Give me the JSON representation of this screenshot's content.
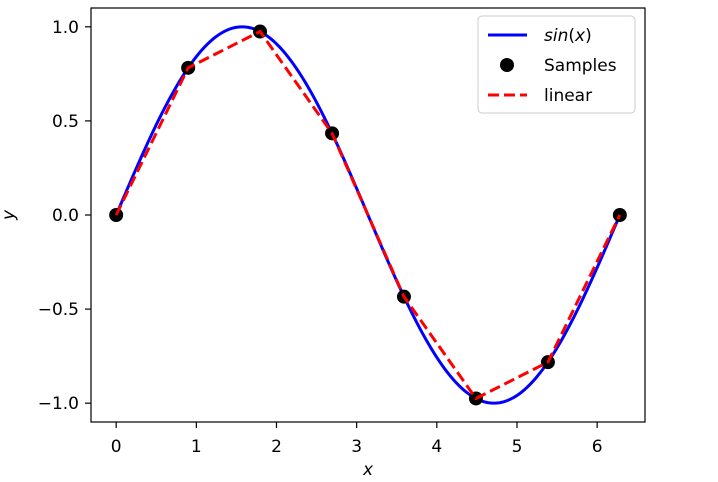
{
  "chart_data": {
    "type": "line",
    "title": "",
    "xlabel": "x",
    "ylabel": "y",
    "xlim": [
      -0.314,
      6.597
    ],
    "ylim": [
      -1.1,
      1.1
    ],
    "x_ticks": [
      0,
      1,
      2,
      3,
      4,
      5,
      6
    ],
    "y_ticks": [
      1.0,
      0.5,
      0.0,
      -0.5,
      -1.0
    ],
    "x_tick_labels": [
      "0",
      "1",
      "2",
      "3",
      "4",
      "5",
      "6"
    ],
    "y_tick_labels": [
      "1.0",
      "0.5",
      "0.0",
      "−0.5",
      "−1.0"
    ],
    "grid": false,
    "legend_position": "top-right",
    "series": [
      {
        "name": "sin(x)",
        "kind": "curve",
        "function": "sin",
        "x_range": [
          0,
          6.283
        ],
        "color": "#0000ff",
        "style": "solid"
      },
      {
        "name": "Samples",
        "kind": "scatter",
        "color": "#000000",
        "x": [
          0.0,
          0.898,
          1.795,
          2.693,
          3.59,
          4.488,
          5.386,
          6.283
        ],
        "y": [
          0.0,
          0.782,
          0.975,
          0.434,
          -0.434,
          -0.975,
          -0.782,
          0.0
        ]
      },
      {
        "name": "linear",
        "kind": "line",
        "color": "#ff0000",
        "style": "dashed",
        "x": [
          0.0,
          0.898,
          1.795,
          2.693,
          3.59,
          4.488,
          5.386,
          6.283
        ],
        "y": [
          0.0,
          0.782,
          0.975,
          0.434,
          -0.434,
          -0.975,
          -0.782,
          0.0
        ]
      }
    ],
    "legend": {
      "sin_prefix": "sin",
      "sin_open": "(",
      "sin_var": "x",
      "sin_close": ")",
      "samples": "Samples",
      "linear": "linear"
    }
  }
}
